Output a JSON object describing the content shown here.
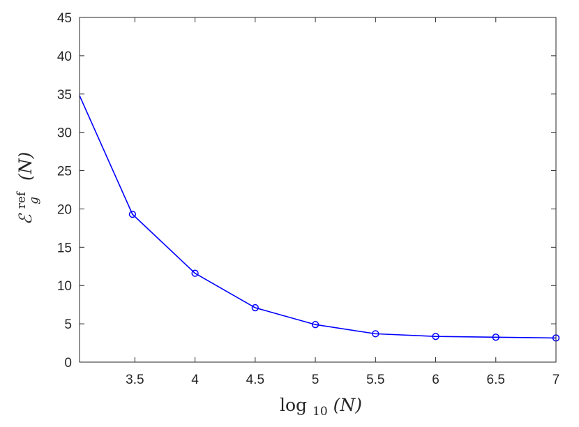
{
  "chart_data": {
    "type": "line",
    "title": "",
    "x_axis": {
      "label_main": "log",
      "label_sub": "10",
      "label_arg": "(N)",
      "range": [
        3.04,
        7.0
      ],
      "ticks": [
        3.5,
        4,
        4.5,
        5,
        5.5,
        6,
        6.5,
        7
      ],
      "tick_labels": [
        "3.5",
        "4",
        "4.5",
        "5",
        "5.5",
        "6",
        "6.5",
        "7"
      ]
    },
    "y_axis": {
      "label_main": "ℰ",
      "label_sub": "g",
      "label_sup": "ref",
      "label_arg": "(N)",
      "range": [
        0,
        45
      ],
      "ticks": [
        0,
        5,
        10,
        15,
        20,
        25,
        30,
        35,
        40,
        45
      ],
      "tick_labels": [
        "0",
        "5",
        "10",
        "15",
        "20",
        "25",
        "30",
        "35",
        "40",
        "45"
      ]
    },
    "grid": false,
    "series": [
      {
        "color": "#0000ff",
        "marker": "circle",
        "x": [
          3.04,
          3.48,
          4.0,
          4.5,
          5.0,
          5.5,
          6.0,
          6.5,
          7.0
        ],
        "y": [
          34.8,
          19.3,
          11.6,
          7.1,
          4.9,
          3.7,
          3.35,
          3.25,
          3.15
        ],
        "marker_shown": [
          false,
          true,
          true,
          true,
          true,
          true,
          true,
          true,
          true
        ]
      }
    ]
  }
}
